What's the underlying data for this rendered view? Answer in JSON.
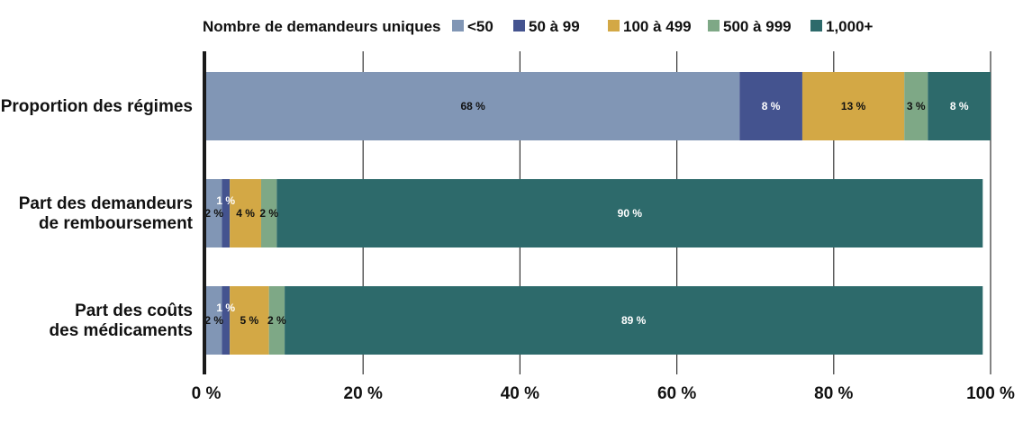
{
  "chart_data": {
    "type": "bar",
    "orientation": "horizontal",
    "stacked": true,
    "legend_title": "Nombre de demandeurs uniques",
    "legend_position": "top",
    "categories": [
      [
        "Proportion des régimes"
      ],
      [
        "Part des demandeurs",
        "de remboursement"
      ],
      [
        "Part des coûts",
        "des médicaments"
      ]
    ],
    "series": [
      {
        "name": "<50",
        "color": "#8196b5",
        "label_color": "#111111",
        "values": [
          68,
          2,
          2
        ],
        "labels": [
          "68 %",
          "2 %",
          "2 %"
        ]
      },
      {
        "name": "50 à 99",
        "color": "#44538f",
        "label_color": "#ffffff",
        "values": [
          8,
          1,
          1
        ],
        "labels": [
          "8 %",
          "1 %",
          "1 %"
        ]
      },
      {
        "name": "100 à 499",
        "color": "#d3a845",
        "label_color": "#111111",
        "values": [
          13,
          4,
          5
        ],
        "labels": [
          "13 %",
          "4 %",
          "5 %"
        ]
      },
      {
        "name": "500 à 999",
        "color": "#7ea886",
        "label_color": "#111111",
        "values": [
          3,
          2,
          2
        ],
        "labels": [
          "3 %",
          "2 %",
          "2 %"
        ]
      },
      {
        "name": "1,000+",
        "color": "#2d6a6b",
        "label_color": "#ffffff",
        "values": [
          8,
          90,
          89
        ],
        "labels": [
          "8 %",
          "90 %",
          "89 %"
        ]
      }
    ],
    "xlim": [
      0,
      100
    ],
    "x_ticks": [
      0,
      20,
      40,
      60,
      80,
      100
    ],
    "x_tick_labels": [
      "0 %",
      "20 %",
      "40 %",
      "60 %",
      "80 %",
      "100 %"
    ],
    "grid": true
  }
}
